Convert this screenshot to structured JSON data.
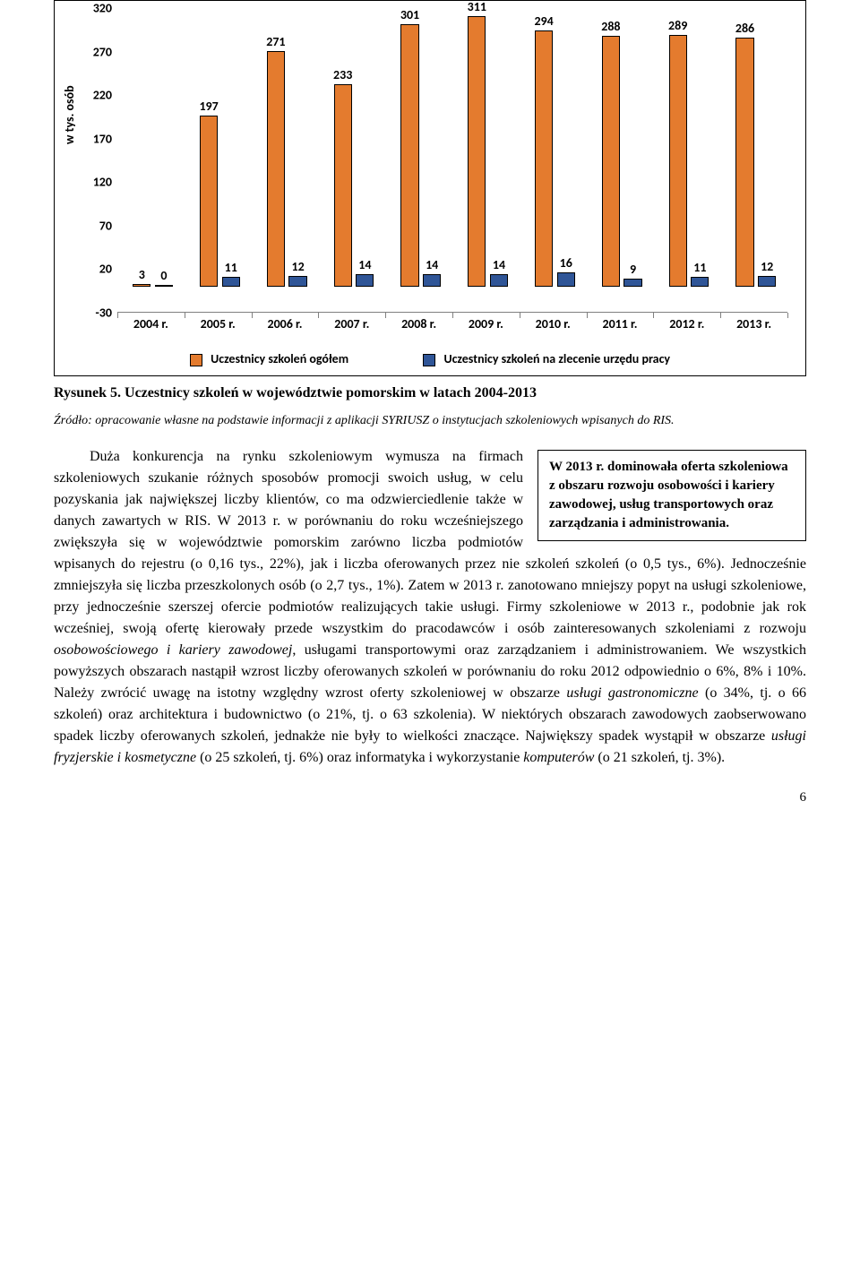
{
  "chart": {
    "type": "bar",
    "y_axis_label": "w tys. osób",
    "y_ticks": [
      -30,
      20,
      70,
      120,
      170,
      220,
      270,
      320
    ],
    "ylim": [
      -30,
      320
    ],
    "categories": [
      "2004 r.",
      "2005 r.",
      "2006 r.",
      "2007 r.",
      "2008 r.",
      "2009 r.",
      "2010 r.",
      "2011 r.",
      "2012 r.",
      "2013 r."
    ],
    "series": [
      {
        "name": "Uczestnicy szkoleń ogółem",
        "color": "#e47b2e",
        "values": [
          3,
          197,
          271,
          233,
          301,
          311,
          294,
          288,
          289,
          286
        ]
      },
      {
        "name": "Uczestnicy szkoleń na zlecenie urzędu pracy",
        "color": "#2f5597",
        "values": [
          0,
          11,
          12,
          14,
          14,
          14,
          16,
          9,
          11,
          12
        ]
      }
    ],
    "legend_items": [
      "Uczestnicy szkoleń ogółem",
      "Uczestnicy szkoleń na zlecenie urzędu pracy"
    ],
    "background_color": "#ffffff",
    "axis_color": "#808080",
    "label_fontsize": 14,
    "bar_group_width": 0.54,
    "group_gap": 0.06
  },
  "figure_caption_bold": "Rysunek 5. Uczestnicy szkoleń w województwie pomorskim w",
  "figure_caption_rest": " latach 2004-2013",
  "source_line": "Źródło: opracowanie własne na podstawie informacji z aplikacji SYRIUSZ o instytucjach szkoleniowych wpisanych do RIS.",
  "callout_text": "W 2013 r. dominowała oferta szkoleniowa z obszaru rozwoju osobowości i kariery zawodowej, usług transportowych oraz zarządzania i administrowania.",
  "body_p1": "Duża konkurencja na rynku szkoleniowym wymusza na firmach szkoleniowych szukanie różnych sposobów promocji swoich usług, w celu pozyskania jak największej liczby klientów, co ma odzwierciedlenie także w danych zawartych w RIS. W 2013 r. w porównaniu do roku wcześniejszego zwiększyła się w województwie pomorskim zarówno liczba podmiotów wpisanych do rejestru (o 0,16 tys., 22%), jak i liczba oferowanych przez nie szkoleń szkoleń (o 0,5 tys., 6%). Jednocześnie zmniejszyła się liczba przeszkolonych osób (o 2,7 tys., 1%). Zatem w 2013 r. zanotowano mniejszy popyt na usługi szkoleniowe, przy jednocześnie szerszej ofercie podmiotów realizujących takie usługi. Firmy szkoleniowe w 2013 r., podobnie jak rok wcześniej, swoją ofertę kierowały przede wszystkim do pracodawców i osób zainteresowanych szkoleniami z rozwoju ",
  "body_italic1": "osobowościowego i kariery zawodowej",
  "body_p1b": ", usługami transportowymi oraz zarządzaniem i administrowaniem. We wszystkich powyższych obszarach nastąpił wzrost liczby oferowanych szkoleń w porównaniu do roku 2012 odpowiednio o 6%, 8% i 10%. Należy zwrócić uwagę na istotny względny wzrost oferty szkoleniowej w obszarze ",
  "body_italic2": "usługi gastronomiczne",
  "body_p1c": " (o 34%, tj. o 66 szkoleń) oraz architektura i budownictwo (o 21%, tj. o 63 szkolenia). W niektórych obszarach zawodowych zaobserwowano spadek liczby oferowanych szkoleń, jednakże nie były to wielkości znaczące. Największy spadek wystąpił w obszarze ",
  "body_italic3": "usługi fryzjerskie i kosmetyczne",
  "body_p1d": " (o 25 szkoleń, tj. 6%) oraz informatyka i wykorzystanie ",
  "body_italic4": "komputerów",
  "body_p1e": " (o 21 szkoleń, tj. 3%).",
  "page_number": "6"
}
